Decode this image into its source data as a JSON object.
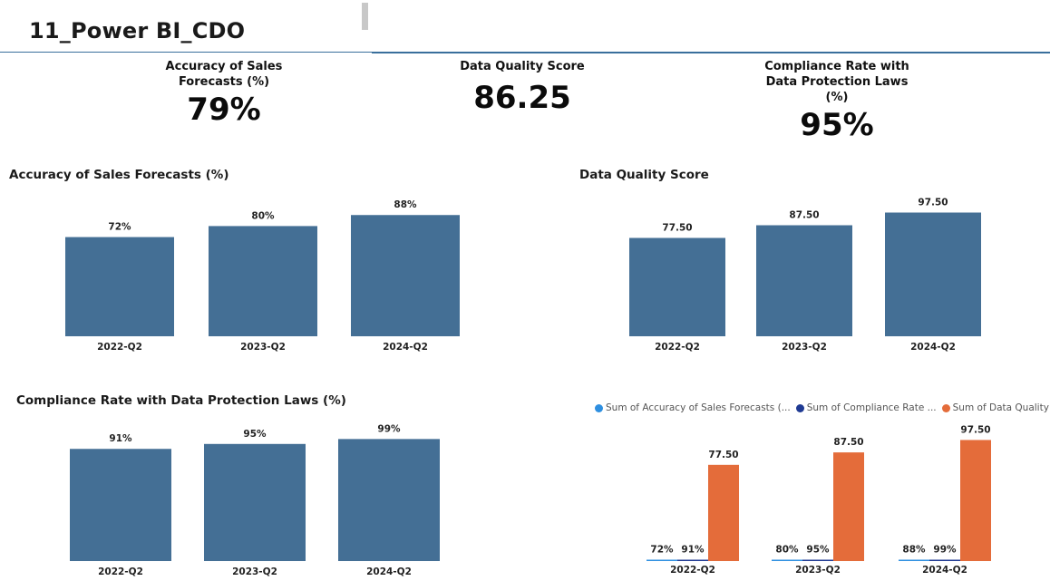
{
  "header": {
    "title": "11_Power BI_CDO"
  },
  "kpis": [
    {
      "label": "Accuracy of Sales Forecasts (%)",
      "value": "79%"
    },
    {
      "label": "Data Quality Score",
      "value": "86.25"
    },
    {
      "label": "Compliance Rate with Data Protection Laws (%)",
      "value": "95%"
    }
  ],
  "colors": {
    "bar": "#446f95",
    "accuracy": "#2e8fe0",
    "compliance": "#1f3a93",
    "quality": "#e46c3a"
  },
  "chart_data": [
    {
      "type": "bar",
      "title": "Accuracy of Sales Forecasts (%)",
      "categories": [
        "2022-Q2",
        "2023-Q2",
        "2024-Q2"
      ],
      "values": [
        72,
        80,
        88
      ],
      "data_labels": [
        "72%",
        "80%",
        "88%"
      ],
      "unit": "%",
      "ylim": [
        0,
        100
      ],
      "grid": false
    },
    {
      "type": "bar",
      "title": "Data Quality Score",
      "categories": [
        "2022-Q2",
        "2023-Q2",
        "2024-Q2"
      ],
      "values": [
        77.5,
        87.5,
        97.5
      ],
      "data_labels": [
        "77.50",
        "87.50",
        "97.50"
      ],
      "ylim": [
        0,
        100
      ],
      "grid": false
    },
    {
      "type": "bar",
      "title": "Compliance Rate with Data Protection Laws (%)",
      "categories": [
        "2022-Q2",
        "2023-Q2",
        "2024-Q2"
      ],
      "values": [
        91,
        95,
        99
      ],
      "data_labels": [
        "91%",
        "95%",
        "99%"
      ],
      "unit": "%",
      "ylim": [
        0,
        100
      ],
      "grid": false
    },
    {
      "type": "bar",
      "title": "",
      "categories": [
        "2022-Q2",
        "2023-Q2",
        "2024-Q2"
      ],
      "legend_position": "top",
      "grid": false,
      "series": [
        {
          "name": "Sum of Accuracy of Sales Forecasts (...",
          "values": [
            0.72,
            0.8,
            0.88
          ],
          "data_labels": [
            "72%",
            "80%",
            "88%"
          ],
          "color": "#2e8fe0"
        },
        {
          "name": "Sum of Compliance Rate ...",
          "values": [
            0.91,
            0.95,
            0.99
          ],
          "data_labels": [
            "91%",
            "95%",
            "99%"
          ],
          "color": "#1f3a93"
        },
        {
          "name": "Sum of Data Quality S...",
          "values": [
            77.5,
            87.5,
            97.5
          ],
          "data_labels": [
            "77.50",
            "87.50",
            "97.50"
          ],
          "color": "#e46c3a"
        }
      ],
      "ylim": [
        0,
        100
      ]
    }
  ]
}
